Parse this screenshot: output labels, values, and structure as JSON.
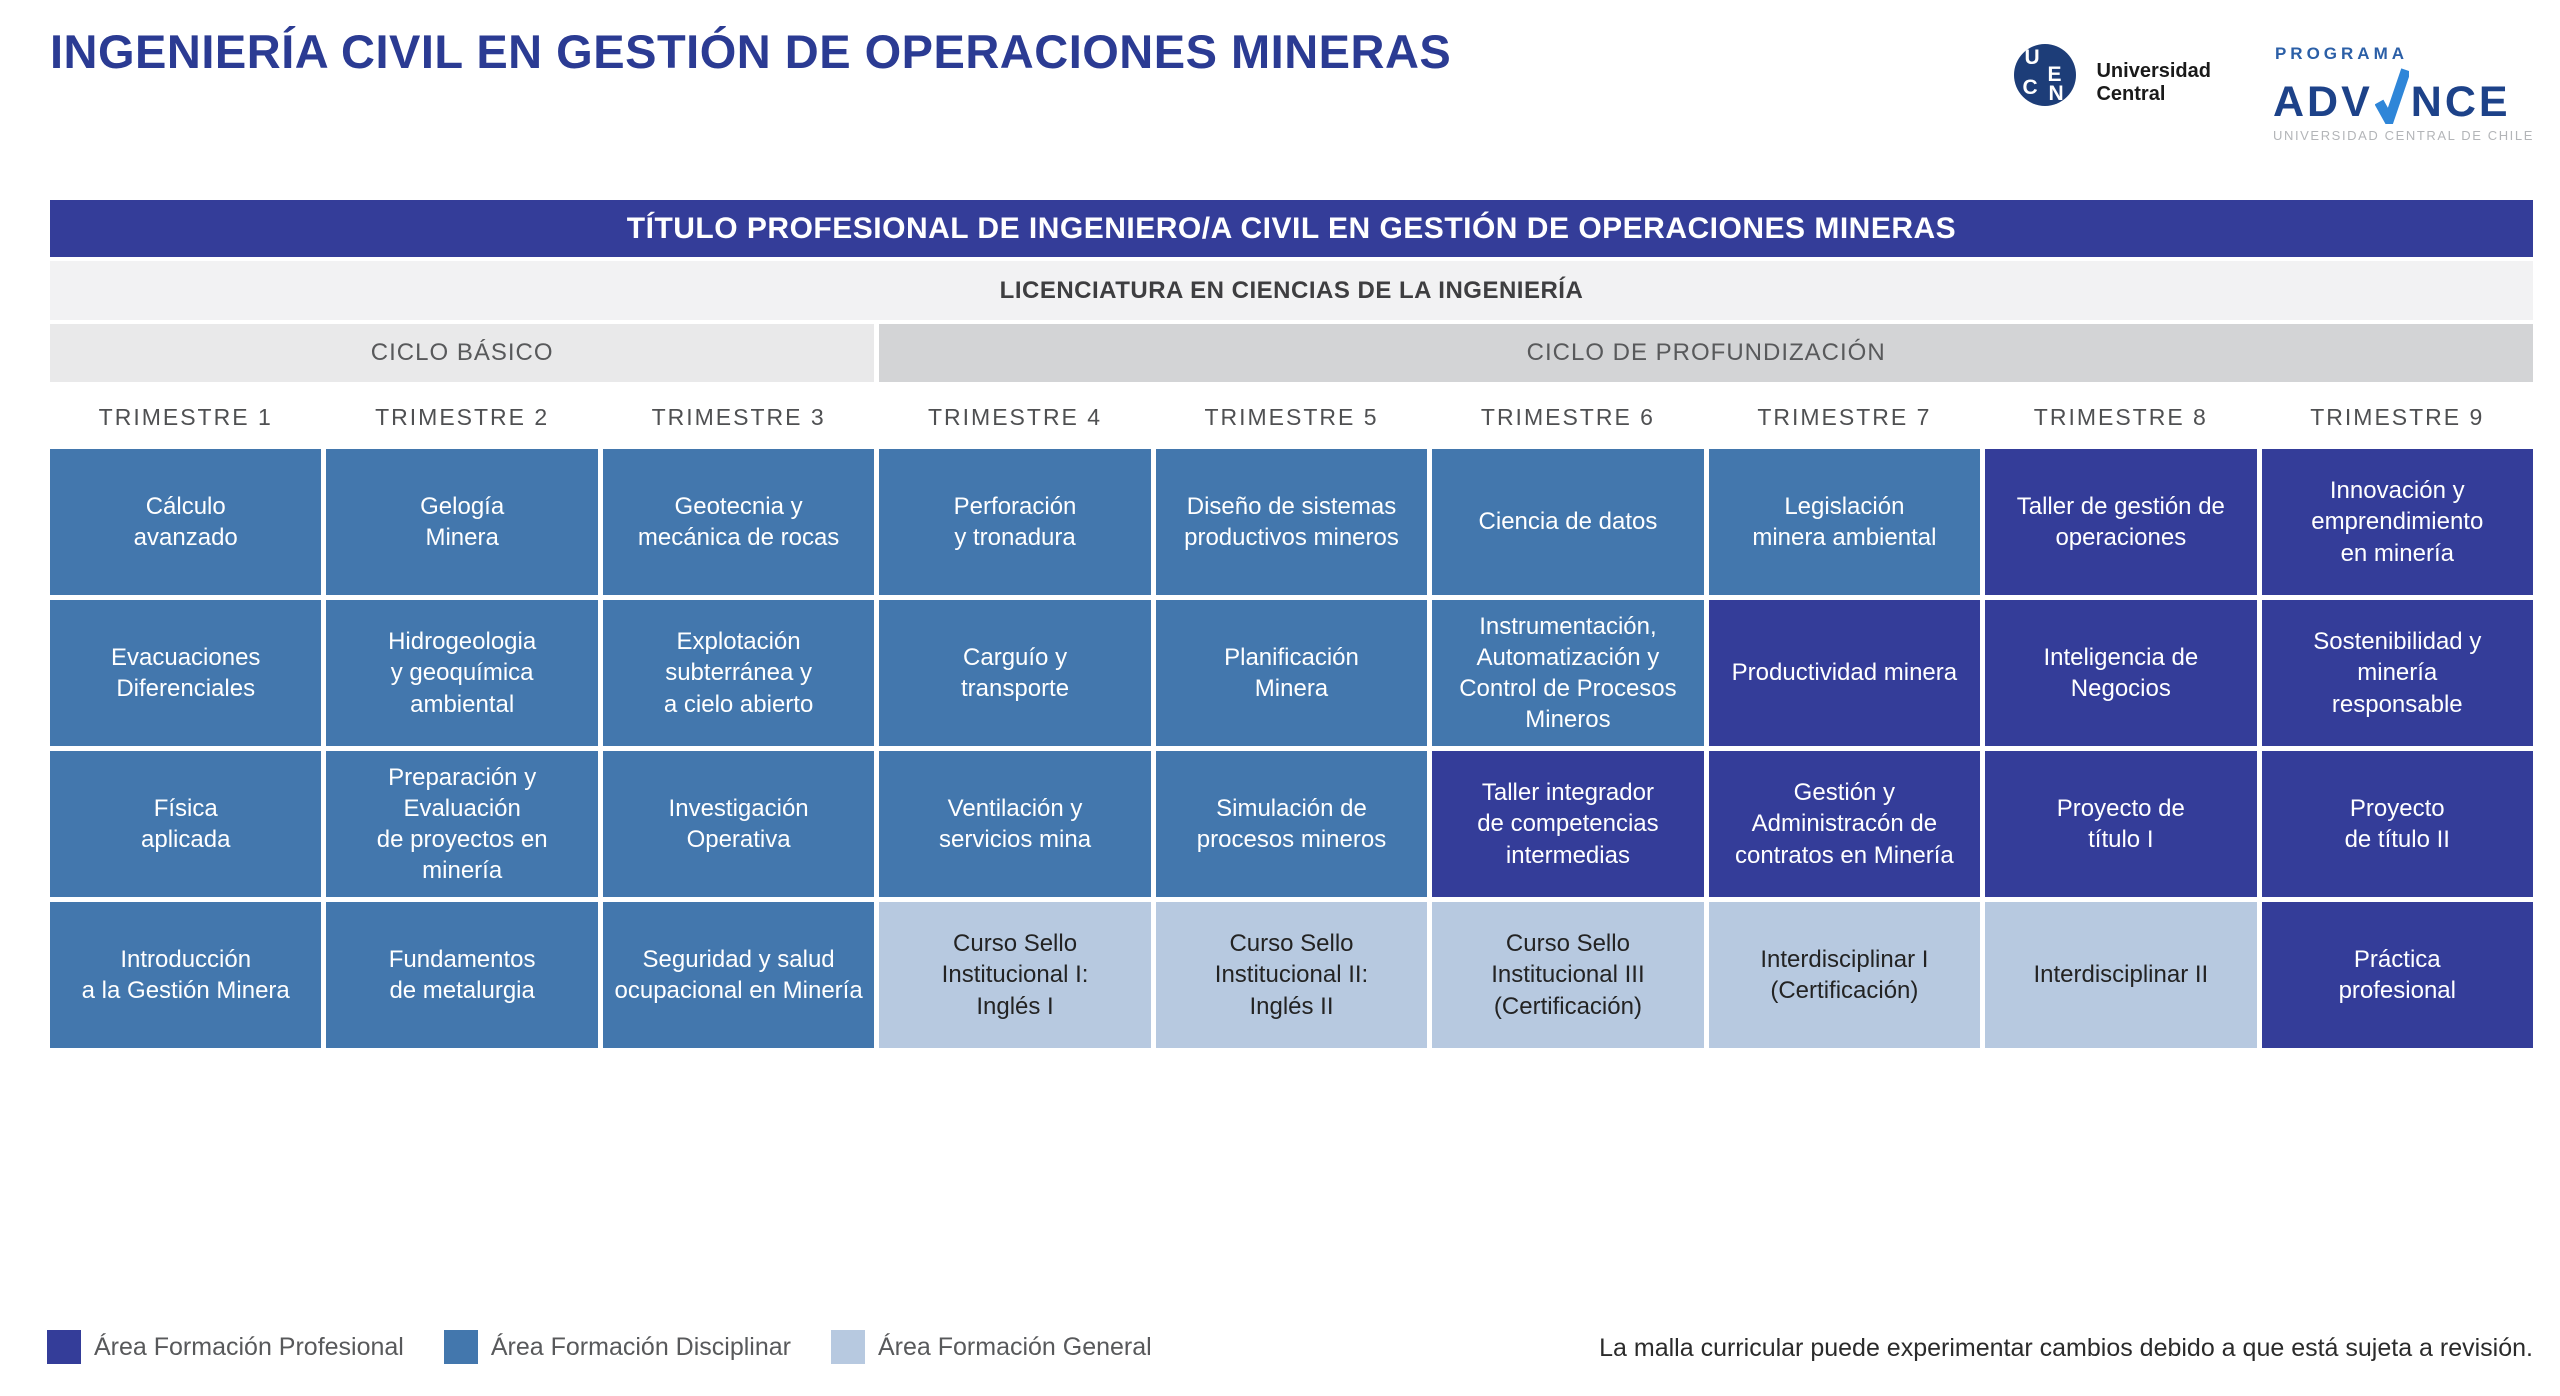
{
  "page": {
    "title": "INGENIERÍA CIVIL EN GESTIÓN DE OPERACIONES MINERAS",
    "disclaimer": "La malla curricular puede experimentar cambios debido a que está sujeta a revisión."
  },
  "logos": {
    "ucen": {
      "letters": [
        "U",
        "C",
        "E",
        "N"
      ],
      "name_line1": "Universidad",
      "name_line2": "Central"
    },
    "advance": {
      "program": "PROGRAMA",
      "brand_left": "ADV",
      "brand_right": "NCE",
      "subtitle": "UNIVERSIDAD CENTRAL DE CHILE"
    }
  },
  "banner": {
    "degree_title": "TÍTULO PROFESIONAL DE INGENIERO/A CIVIL EN GESTIÓN DE OPERACIONES MINERAS",
    "licentiate": "LICENCIATURA EN CIENCIAS DE LA INGENIERÍA",
    "cycles": [
      {
        "label": "CICLO BÁSICO",
        "span": 3
      },
      {
        "label": "CICLO DE PROFUNDIZACIÓN",
        "span": 6
      }
    ]
  },
  "trimesters": [
    "TRIMESTRE 1",
    "TRIMESTRE 2",
    "TRIMESTRE 3",
    "TRIMESTRE 4",
    "TRIMESTRE 5",
    "TRIMESTRE 6",
    "TRIMESTRE 7",
    "TRIMESTRE 8",
    "TRIMESTRE 9"
  ],
  "grid": {
    "rows": [
      {
        "cells": [
          {
            "label": "Cálculo\navanzado",
            "area": "disciplinar"
          },
          {
            "label": "Gelogía\nMinera",
            "area": "disciplinar"
          },
          {
            "label": "Geotecnia y\nmecánica de rocas",
            "area": "disciplinar"
          },
          {
            "label": "Perforación\ny tronadura",
            "area": "disciplinar"
          },
          {
            "label": "Diseño de sistemas\nproductivos mineros",
            "area": "disciplinar"
          },
          {
            "label": "Ciencia de datos",
            "area": "disciplinar"
          },
          {
            "label": "Legislación\nminera ambiental",
            "area": "disciplinar"
          },
          {
            "label": "Taller de gestión de\noperaciones",
            "area": "profesional"
          },
          {
            "label": "Innovación y\nemprendimiento\nen minería",
            "area": "profesional"
          }
        ]
      },
      {
        "cells": [
          {
            "label": "Evacuaciones\nDiferenciales",
            "area": "disciplinar"
          },
          {
            "label": "Hidrogeologia\ny geoquímica\nambiental",
            "area": "disciplinar"
          },
          {
            "label": "Explotación\nsubterránea y\na cielo abierto",
            "area": "disciplinar"
          },
          {
            "label": "Carguío y\ntransporte",
            "area": "disciplinar"
          },
          {
            "label": "Planificación\nMinera",
            "area": "disciplinar"
          },
          {
            "label": "Instrumentación,\nAutomatización y\nControl de Procesos\nMineros",
            "area": "disciplinar"
          },
          {
            "label": "Productividad minera",
            "area": "profesional"
          },
          {
            "label": "Inteligencia de\nNegocios",
            "area": "profesional"
          },
          {
            "label": "Sostenibilidad y\nminería\nresponsable",
            "area": "profesional"
          }
        ]
      },
      {
        "cells": [
          {
            "label": "Física\naplicada",
            "area": "disciplinar"
          },
          {
            "label": "Preparación y\nEvaluación\nde proyectos en\nminería",
            "area": "disciplinar"
          },
          {
            "label": "Investigación\nOperativa",
            "area": "disciplinar"
          },
          {
            "label": "Ventilación y\nservicios mina",
            "area": "disciplinar"
          },
          {
            "label": "Simulación de\nprocesos mineros",
            "area": "disciplinar"
          },
          {
            "label": "Taller integrador\nde competencias\nintermedias",
            "area": "profesional"
          },
          {
            "label": "Gestión y\nAdministracón de\ncontratos en Minería",
            "area": "profesional"
          },
          {
            "label": "Proyecto de\ntítulo I",
            "area": "profesional"
          },
          {
            "label": "Proyecto\nde título II",
            "area": "profesional"
          }
        ]
      },
      {
        "cells": [
          {
            "label": "Introducción\na la Gestión Minera",
            "area": "disciplinar"
          },
          {
            "label": "Fundamentos\nde metalurgia",
            "area": "disciplinar"
          },
          {
            "label": "Seguridad y salud\nocupacional en Minería",
            "area": "disciplinar"
          },
          {
            "label": "Curso Sello\nInstitucional I:\nInglés I",
            "area": "general"
          },
          {
            "label": "Curso Sello\nInstitucional II:\nInglés II",
            "area": "general"
          },
          {
            "label": "Curso Sello\nInstitucional III\n(Certificación)",
            "area": "general"
          },
          {
            "label": "Interdisciplinar I\n(Certificación)",
            "area": "general"
          },
          {
            "label": "Interdisciplinar II",
            "area": "general"
          },
          {
            "label": "Práctica\nprofesional",
            "area": "profesional"
          }
        ]
      }
    ]
  },
  "legend": {
    "items": [
      {
        "label": "Área Formación Profesional",
        "area": "profesional",
        "color": "#343D99"
      },
      {
        "label": "Área Formación Disciplinar",
        "area": "disciplinar",
        "color": "#4377AD"
      },
      {
        "label": "Área Formación General",
        "area": "general",
        "color": "#B7C9E0"
      }
    ]
  }
}
